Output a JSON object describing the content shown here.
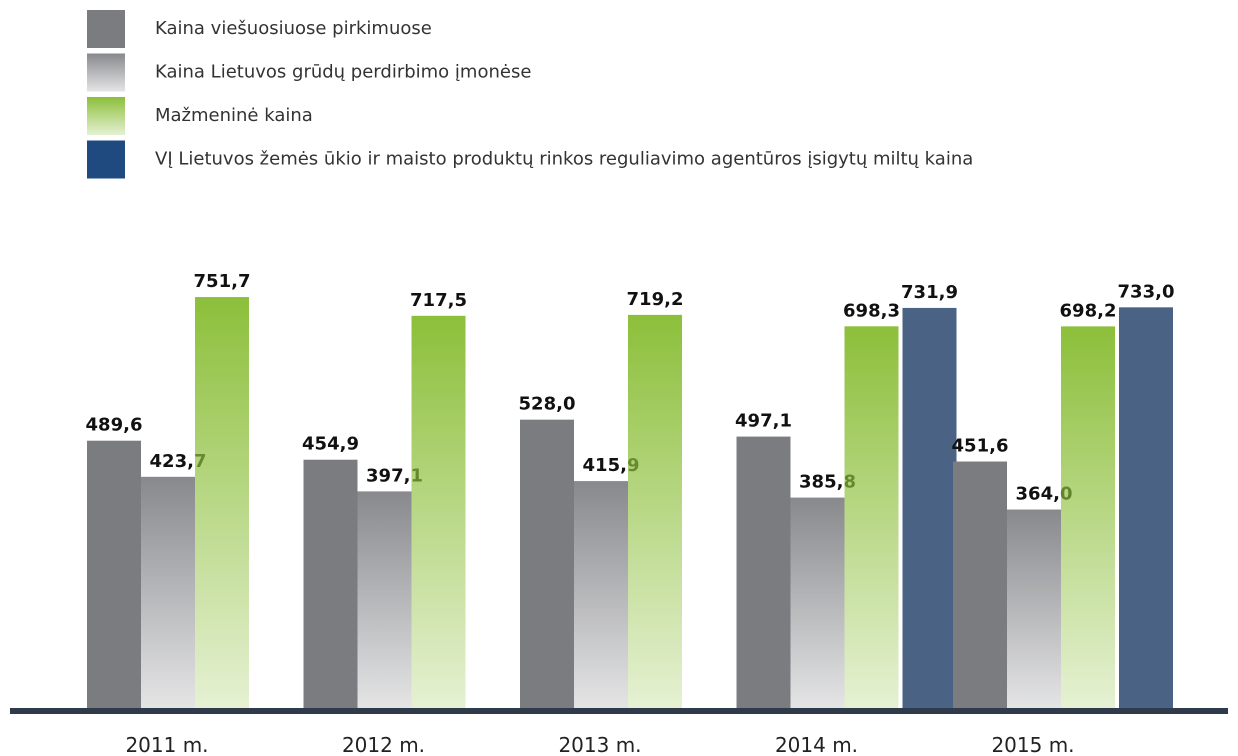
{
  "chart_data": {
    "type": "bar",
    "categories": [
      "2011 m.",
      "2012 m.",
      "2013 m.",
      "2014 m.",
      "2015 m."
    ],
    "series": [
      {
        "name": "Kaina viešuosiuose pirkimuose",
        "color": "#7b7c80",
        "gradient": false,
        "values": [
          489.6,
          454.9,
          528.0,
          497.1,
          451.6
        ],
        "value_labels": [
          "489,6",
          "454,9",
          "528,0",
          "497,1",
          "451,6"
        ]
      },
      {
        "name": "Kaina Lietuvos grūdų perdirbimo įmonėse",
        "color": "#88898d",
        "gradient": true,
        "values": [
          423.7,
          397.1,
          415.9,
          385.8,
          364.0
        ],
        "value_labels": [
          "423,7",
          "397,1",
          "415,9",
          "385,8",
          "364,0"
        ]
      },
      {
        "name": "Mažmeninė kaina",
        "color": "#8cbf3a",
        "gradient": true,
        "values": [
          751.7,
          717.5,
          719.2,
          698.3,
          698.2
        ],
        "value_labels": [
          "751,7",
          "717,5",
          "719,2",
          "698,3",
          "698,2"
        ]
      },
      {
        "name": "VĮ Lietuvos žemės ūkio ir maisto produktų rinkos reguliavimo agentūros įsigytų miltų kaina",
        "color": "#4a6385",
        "gradient": false,
        "values": [
          null,
          null,
          null,
          731.9,
          733.0
        ],
        "value_labels": [
          null,
          null,
          null,
          "731,9",
          "733,0"
        ]
      }
    ]
  }
}
